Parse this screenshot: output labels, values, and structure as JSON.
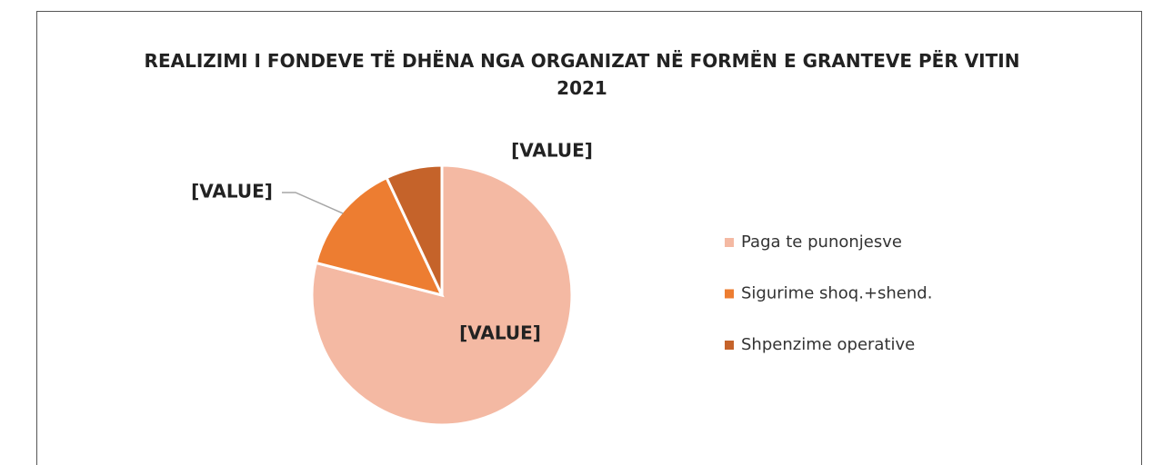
{
  "chart_data": {
    "type": "pie",
    "title": "REALIZIMI I FONDEVE TË DHËNA NGA ORGANIZAT NË FORMËN E GRANTEVE PËR VITIN 2021",
    "categories": [
      "Paga te punonjesve",
      "Sigurime shoq.+shend.",
      "Shpenzime operative"
    ],
    "values": [
      79,
      14,
      7
    ],
    "value_labels": [
      "[VALUE]",
      "[VALUE]",
      "[VALUE]"
    ],
    "colors": [
      "#f4b9a3",
      "#ed7d31",
      "#c5632a"
    ],
    "legend": "right"
  }
}
